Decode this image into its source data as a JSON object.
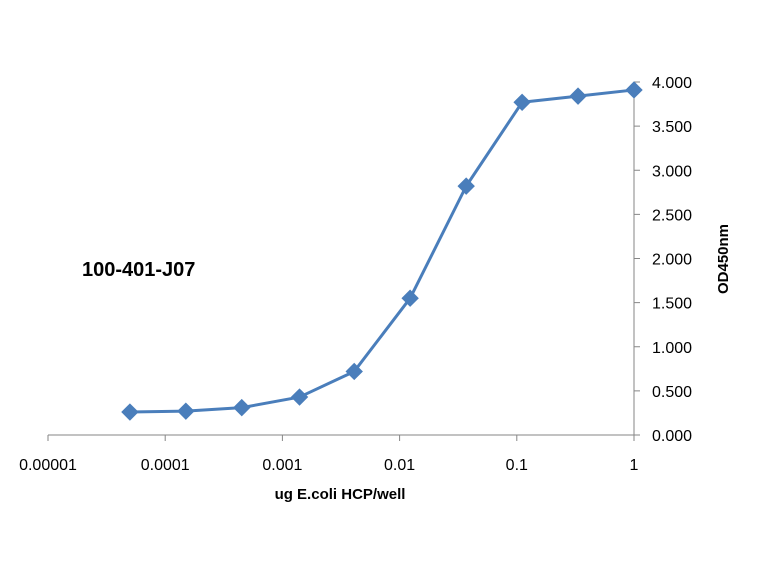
{
  "chart_data": {
    "type": "scatter",
    "annotation": "100-401-J07",
    "xlabel": "ug E.coli HCP/well",
    "ylabel": "OD450nm",
    "x_scale": "log",
    "xlim": [
      1e-05,
      1
    ],
    "ylim": [
      0,
      4
    ],
    "x_ticks": [
      "0.00001",
      "0.0001",
      "0.001",
      "0.01",
      "0.1",
      "1"
    ],
    "x_tick_values": [
      1e-05,
      0.0001,
      0.001,
      0.01,
      0.1,
      1
    ],
    "y_ticks": [
      "0.000",
      "0.500",
      "1.000",
      "1.500",
      "2.000",
      "2.500",
      "3.000",
      "3.500",
      "4.000"
    ],
    "y_tick_values": [
      0,
      0.5,
      1,
      1.5,
      2,
      2.5,
      3,
      3.5,
      4
    ],
    "grid": false,
    "legend": "none",
    "series": [
      {
        "color": "#4a7ebb",
        "marker": "diamond",
        "points": [
          {
            "x": 5e-05,
            "y": 0.26
          },
          {
            "x": 0.00015,
            "y": 0.27
          },
          {
            "x": 0.00045,
            "y": 0.31
          },
          {
            "x": 0.0014,
            "y": 0.43
          },
          {
            "x": 0.0041,
            "y": 0.72
          },
          {
            "x": 0.0123,
            "y": 1.55
          },
          {
            "x": 0.037,
            "y": 2.82
          },
          {
            "x": 0.111,
            "y": 3.77
          },
          {
            "x": 0.333,
            "y": 3.84
          },
          {
            "x": 1.0,
            "y": 3.91
          }
        ]
      }
    ]
  }
}
